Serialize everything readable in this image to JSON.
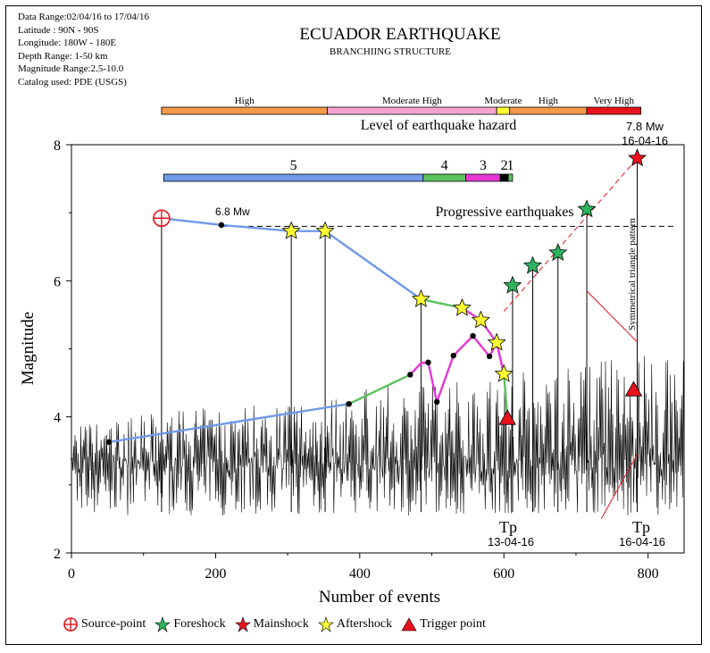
{
  "info_lines": [
    "Data Range:02/04/16 to 17/04/16",
    "Latitude : 90N - 90S",
    "Longitude: 180W - 180E",
    "Depth Range: 1-50 km",
    "Magnitude Range:2.5-10.0",
    "Catalog used: PDE (USGS)"
  ],
  "colors": {
    "hazard_high": "#f39b4a",
    "hazard_moderate_high": "#f4a6d0",
    "hazard_moderate": "#ffff33",
    "hazard_very_high": "#e8121d",
    "branch_blue": "#6f9ae8",
    "branch_green": "#5cc25c",
    "branch_magenta": "#e637d4",
    "branch_black": "#000000",
    "foreshock": "#2db35d",
    "mainshock": "#e8121d",
    "aftershock": "#ffff33",
    "trigger": "#e8121d",
    "source": "#e8121d"
  },
  "chart_data": {
    "type": "line",
    "title": "ECUADOR EARTHQUAKE",
    "subtitle": "BRANCHIING STRUCTURE",
    "xlabel": "Number of events",
    "ylabel": "Magnitude",
    "xlim": [
      0,
      850
    ],
    "ylim": [
      2,
      8
    ],
    "xticks": [
      "0",
      "200",
      "400",
      "600",
      "800"
    ],
    "yticks": [
      "2",
      "4",
      "6",
      "8"
    ],
    "hazard_bar": {
      "title": "Level of earthquake hazard",
      "segments": [
        {
          "label": "High",
          "from": 125,
          "to": 355,
          "color": "#f39b4a"
        },
        {
          "label": "Moderate High",
          "from": 355,
          "to": 590,
          "color": "#f4a6d0"
        },
        {
          "label": "Moderate",
          "from": 590,
          "to": 608,
          "color": "#ffff33"
        },
        {
          "label": "High",
          "from": 608,
          "to": 715,
          "color": "#f39b4a"
        },
        {
          "label": "Very High",
          "from": 715,
          "to": 790,
          "color": "#e8121d"
        }
      ]
    },
    "branch_bar": {
      "segments": [
        {
          "label": "5",
          "from": 128,
          "to": 488,
          "color": "#6f9ae8"
        },
        {
          "label": "4",
          "from": 488,
          "to": 547,
          "color": "#5cc25c"
        },
        {
          "label": "3",
          "from": 547,
          "to": 595,
          "color": "#e637d4"
        },
        {
          "label": "2",
          "from": 595,
          "to": 606,
          "color": "#000000"
        },
        {
          "label": "1",
          "from": 606,
          "to": 612,
          "color": "#5cc25c"
        }
      ]
    },
    "branches": [
      {
        "name": "blue-upper",
        "color": "#6f9ae8",
        "x": [
          125,
          208,
          305,
          352,
          485
        ],
        "y": [
          6.92,
          6.82,
          6.73,
          6.73,
          5.73
        ]
      },
      {
        "name": "green-upper",
        "color": "#5cc25c",
        "x": [
          485,
          542
        ],
        "y": [
          5.73,
          5.6
        ]
      },
      {
        "name": "magenta-upper",
        "color": "#e637d4",
        "x": [
          542,
          568,
          590,
          600
        ],
        "y": [
          5.6,
          5.42,
          5.09,
          4.63
        ]
      },
      {
        "name": "blue-lower",
        "color": "#6f9ae8",
        "x": [
          52,
          385
        ],
        "y": [
          3.63,
          4.19
        ]
      },
      {
        "name": "green-lower",
        "color": "#5cc25c",
        "x": [
          385,
          470
        ],
        "y": [
          4.19,
          4.62
        ]
      },
      {
        "name": "magenta-lower",
        "color": "#e637d4",
        "x": [
          470,
          485,
          495,
          507,
          530,
          557,
          580,
          590,
          600
        ],
        "y": [
          4.62,
          4.79,
          4.8,
          4.22,
          4.9,
          5.19,
          4.89,
          5.09,
          4.63
        ]
      },
      {
        "name": "green-tail",
        "color": "#5cc25c",
        "x": [
          600,
          605
        ],
        "y": [
          4.63,
          3.98
        ]
      }
    ],
    "black_dots": {
      "x": [
        52,
        208,
        385,
        470,
        495,
        507,
        530,
        557,
        580
      ],
      "y": [
        3.63,
        6.82,
        4.19,
        4.62,
        4.8,
        4.22,
        4.9,
        5.19,
        4.89
      ]
    },
    "source_point": {
      "x": 125,
      "y": 6.92
    },
    "aftershocks": {
      "x": [
        305,
        352,
        485,
        542,
        568,
        590,
        600
      ],
      "y": [
        6.73,
        6.73,
        5.73,
        5.6,
        5.42,
        5.09,
        4.63
      ]
    },
    "foreshocks": {
      "x": [
        612,
        640,
        675,
        715
      ],
      "y": [
        5.93,
        6.22,
        6.41,
        7.05
      ]
    },
    "mainshock": {
      "x": 785,
      "y": 7.8
    },
    "triggers": {
      "x": [
        605,
        780
      ],
      "y": [
        3.98,
        4.4
      ]
    },
    "reference_line": {
      "y": 6.8,
      "from": 208,
      "to": 835
    },
    "annotations": {
      "mw68": "6.8 Mw",
      "mw78": "7.8 Mw",
      "date_main": "16-04-16",
      "progressive": "Progressive earthquakes",
      "triangle": "Symmetrical triangle pattern",
      "tp1_label": "Tp",
      "tp1_date": "13-04-16",
      "tp2_label": "Tp",
      "tp2_date": "16-04-16"
    }
  },
  "legend": {
    "source": "Source-point",
    "foreshock": "Foreshock",
    "mainshock": "Mainshock",
    "aftershock": "Aftershock",
    "trigger": "Trigger point"
  }
}
